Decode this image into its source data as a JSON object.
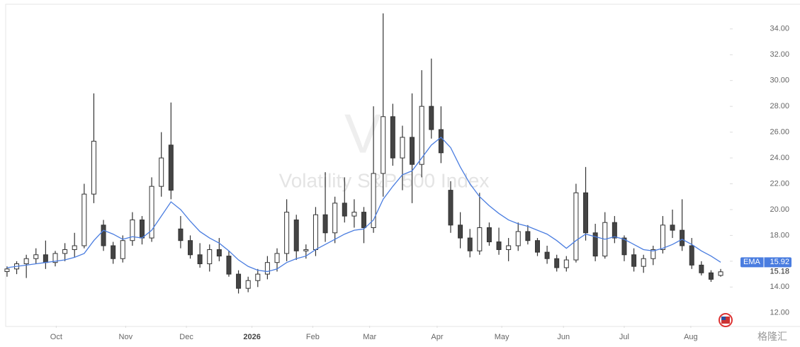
{
  "chart_data": {
    "type": "candlestick",
    "watermark_letter": "V",
    "watermark": "Volatility S&P 500 Index",
    "brand": "格隆汇",
    "up_color": "#ffffff",
    "down_color": "#444444",
    "wick_color": "#333333",
    "open": [
      15.2,
      15.4,
      15.8,
      16.2,
      16.5,
      15.9,
      16.6,
      16.9,
      17.2,
      21.2,
      18.8,
      17.2,
      16.2,
      17.6,
      19.2,
      17.8,
      21.8,
      25.0,
      18.5,
      17.6,
      16.5,
      15.8,
      16.9,
      16.4,
      15.0,
      13.9,
      14.5,
      15.0,
      15.9,
      16.6,
      19.2,
      16.8,
      16.9,
      19.6,
      18.2,
      20.5,
      19.5,
      19.8,
      18.6,
      22.8,
      27.2,
      24.0,
      25.6,
      23.5,
      28.0,
      26.2,
      21.5,
      18.8,
      17.8,
      16.8,
      18.6,
      17.5,
      16.9,
      17.2,
      18.3,
      17.6,
      16.7,
      16.2,
      15.5,
      16.1,
      21.3,
      18.2,
      16.4,
      19.0,
      17.8,
      16.5,
      15.6,
      16.2,
      16.9,
      18.8,
      18.4,
      17.2,
      15.7,
      15.1,
      14.9
    ],
    "high": [
      15.6,
      16.0,
      16.5,
      17.0,
      17.6,
      16.8,
      17.4,
      18.2,
      22.0,
      29.0,
      19.2,
      17.5,
      18.0,
      19.8,
      19.5,
      22.5,
      26.0,
      28.3,
      19.5,
      18.0,
      17.4,
      17.3,
      17.8,
      16.8,
      15.3,
      14.8,
      15.4,
      16.4,
      17.0,
      20.8,
      19.6,
      17.3,
      20.2,
      22.9,
      21.0,
      22.5,
      20.8,
      20.2,
      28.0,
      35.2,
      28.2,
      26.5,
      29.0,
      30.8,
      31.7,
      28.0,
      22.2,
      19.8,
      18.5,
      21.3,
      19.0,
      18.6,
      17.8,
      19.0,
      18.8,
      17.8,
      17.2,
      16.5,
      16.4,
      22.0,
      23.3,
      18.9,
      19.8,
      19.5,
      18.0,
      17.0,
      16.5,
      17.2,
      19.5,
      20.0,
      20.8,
      17.8,
      16.0,
      15.3,
      15.4
    ],
    "low": [
      14.8,
      15.0,
      14.7,
      15.8,
      15.4,
      15.6,
      16.0,
      16.3,
      17.0,
      20.5,
      16.8,
      15.8,
      15.9,
      17.2,
      17.3,
      17.5,
      21.0,
      20.8,
      17.0,
      16.2,
      15.5,
      15.2,
      16.0,
      14.8,
      13.5,
      13.6,
      14.0,
      14.6,
      15.2,
      16.0,
      16.1,
      16.2,
      16.4,
      17.5,
      17.4,
      19.0,
      18.6,
      17.4,
      18.2,
      21.0,
      23.4,
      21.5,
      20.5,
      22.5,
      25.5,
      23.6,
      18.2,
      17.0,
      16.3,
      16.5,
      17.2,
      16.5,
      16.0,
      16.8,
      17.3,
      16.4,
      15.8,
      15.2,
      15.2,
      15.9,
      17.6,
      16.0,
      16.2,
      17.4,
      16.0,
      15.2,
      15.1,
      15.7,
      16.6,
      17.8,
      16.8,
      15.4,
      14.9,
      14.4,
      14.8
    ],
    "close": [
      15.4,
      15.8,
      16.2,
      16.5,
      15.9,
      16.6,
      16.9,
      17.2,
      21.2,
      25.3,
      17.2,
      16.2,
      17.6,
      19.2,
      17.8,
      21.8,
      24.0,
      21.5,
      17.6,
      16.5,
      15.8,
      16.9,
      16.4,
      15.0,
      13.9,
      14.5,
      15.0,
      15.9,
      16.6,
      19.8,
      16.8,
      16.9,
      19.6,
      18.2,
      20.5,
      19.5,
      19.8,
      18.6,
      22.8,
      27.2,
      24.0,
      25.6,
      23.5,
      28.0,
      26.2,
      24.4,
      18.8,
      17.8,
      16.8,
      18.6,
      17.5,
      16.9,
      17.2,
      18.3,
      17.6,
      16.7,
      16.2,
      15.5,
      16.1,
      21.3,
      18.2,
      16.4,
      19.0,
      17.8,
      16.5,
      15.6,
      16.2,
      16.9,
      18.8,
      18.4,
      17.2,
      15.7,
      15.1,
      14.6,
      15.18
    ],
    "ema": {
      "name": "EMA",
      "color": "#4a7de0",
      "values": [
        15.5,
        15.6,
        15.7,
        15.8,
        15.9,
        16.0,
        16.1,
        16.3,
        16.6,
        17.6,
        18.4,
        18.1,
        17.7,
        17.9,
        17.8,
        18.4,
        19.5,
        20.6,
        20.0,
        19.1,
        18.3,
        17.8,
        17.4,
        16.8,
        16.1,
        15.6,
        15.3,
        15.2,
        15.4,
        15.9,
        16.2,
        16.4,
        16.9,
        17.3,
        17.7,
        18.1,
        18.4,
        18.5,
        19.2,
        20.8,
        21.8,
        22.7,
        23.0,
        24.0,
        25.0,
        25.6,
        24.8,
        23.3,
        22.0,
        21.0,
        20.3,
        19.7,
        19.2,
        18.9,
        18.7,
        18.4,
        18.1,
        17.6,
        17.0,
        17.6,
        18.1,
        17.9,
        17.7,
        17.9,
        17.7,
        17.3,
        16.9,
        16.8,
        17.0,
        17.3,
        17.7,
        17.3,
        16.8,
        16.4,
        15.92
      ]
    },
    "xlim": [
      -0.73,
      74.73
    ],
    "xticks": [
      {
        "value": 5.1,
        "label": "Oct"
      },
      {
        "value": 12.3,
        "label": "Nov"
      },
      {
        "value": 18.6,
        "label": "Dec"
      },
      {
        "value": 25.4,
        "label": "2026"
      },
      {
        "value": 31.7,
        "label": "Feb"
      },
      {
        "value": 37.6,
        "label": "Mar"
      },
      {
        "value": 44.6,
        "label": "Apr"
      },
      {
        "value": 51.3,
        "label": "May"
      },
      {
        "value": 57.7,
        "label": "Jun"
      },
      {
        "value": 64.0,
        "label": "Jul"
      },
      {
        "value": 70.9,
        "label": "Aug"
      }
    ],
    "ylim": [
      11,
      35.8
    ],
    "yticks": [
      {
        "value": 12,
        "label": "12.00"
      },
      {
        "value": 14,
        "label": "14.00"
      },
      {
        "value": 16,
        "label": "16.00"
      },
      {
        "value": 18,
        "label": "18.00"
      },
      {
        "value": 20,
        "label": "20.00"
      },
      {
        "value": 22,
        "label": "22.00"
      },
      {
        "value": 24,
        "label": "24.00"
      },
      {
        "value": 26,
        "label": "26.00"
      },
      {
        "value": 28,
        "label": "28.00"
      },
      {
        "value": 30,
        "label": "30.00"
      },
      {
        "value": 32,
        "label": "32.00"
      },
      {
        "value": 34,
        "label": "34.00"
      }
    ]
  }
}
